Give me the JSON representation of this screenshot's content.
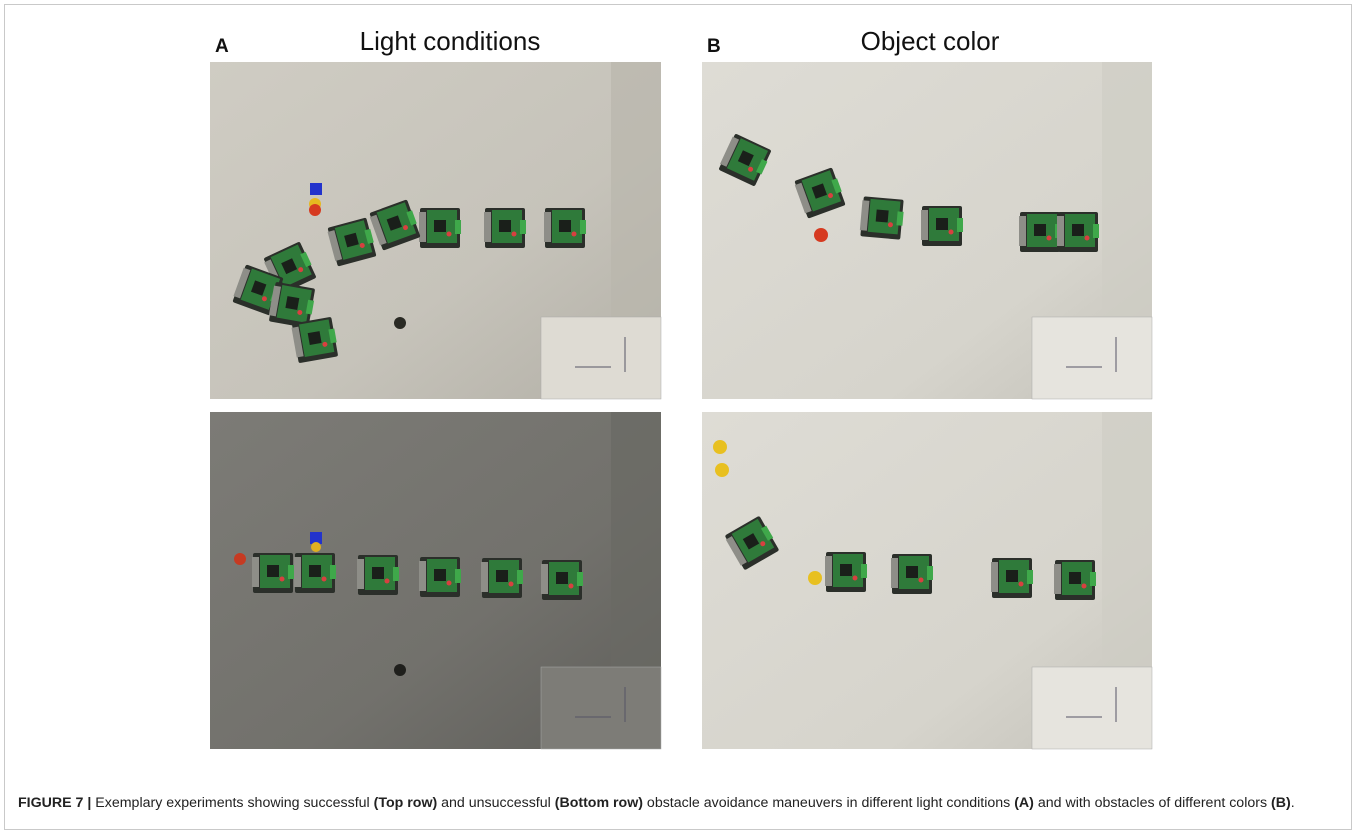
{
  "panels": [
    {
      "letter": "A",
      "title": "Light conditions"
    },
    {
      "letter": "B",
      "title": "Object color"
    }
  ],
  "caption": [
    {
      "text": "FIGURE 7 |",
      "bold": true
    },
    {
      "text": " Exemplary experiments showing successful ",
      "bold": false
    },
    {
      "text": "(Top row)",
      "bold": true
    },
    {
      "text": " and unsuccessful ",
      "bold": false
    },
    {
      "text": "(Bottom row)",
      "bold": true
    },
    {
      "text": " obstacle avoidance maneuvers in different light conditions ",
      "bold": false
    },
    {
      "text": "(A)",
      "bold": true
    },
    {
      "text": " and with obstacles of different colors ",
      "bold": false
    },
    {
      "text": "(B)",
      "bold": true
    },
    {
      "text": ".",
      "bold": false
    }
  ]
}
